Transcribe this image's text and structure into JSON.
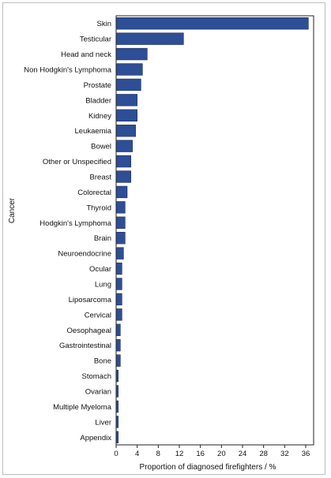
{
  "chart_data": {
    "type": "bar",
    "orientation": "horizontal",
    "categories": [
      "Skin",
      "Testicular",
      "Head and neck",
      "Non Hodgkin's Lymphoma",
      "Prostate",
      "Bladder",
      "Kidney",
      "Leukaemia",
      "Bowel",
      "Other or Unspecified",
      "Breast",
      "Colorectal",
      "Thyroid",
      "Hodgkin's Lymphoma",
      "Brain",
      "Neuroendocrine",
      "Ocular",
      "Lung",
      "Liposarcoma",
      "Cervical",
      "Oesophageal",
      "Gastrointestinal",
      "Bone",
      "Stomach",
      "Ovarian",
      "Multiple Myeloma",
      "Liver",
      "Appendix"
    ],
    "values": [
      36.5,
      12.8,
      5.9,
      5.0,
      4.7,
      4.0,
      4.0,
      3.7,
      3.1,
      2.8,
      2.8,
      2.1,
      1.7,
      1.7,
      1.7,
      1.4,
      1.1,
      1.1,
      1.1,
      1.1,
      0.8,
      0.8,
      0.8,
      0.4,
      0.4,
      0.4,
      0.4,
      0.4
    ],
    "xlabel": "Proportion of diagnosed firefighters / %",
    "ylabel": "Cancer",
    "xlim": [
      0,
      37.5
    ],
    "xticks": [
      0,
      4,
      8,
      12,
      16,
      20,
      24,
      28,
      32,
      36
    ],
    "grid": false,
    "colors": {
      "bar_fill": "#2e4e95",
      "bar_stroke": "#1a2f66",
      "axis": "#222222"
    }
  }
}
